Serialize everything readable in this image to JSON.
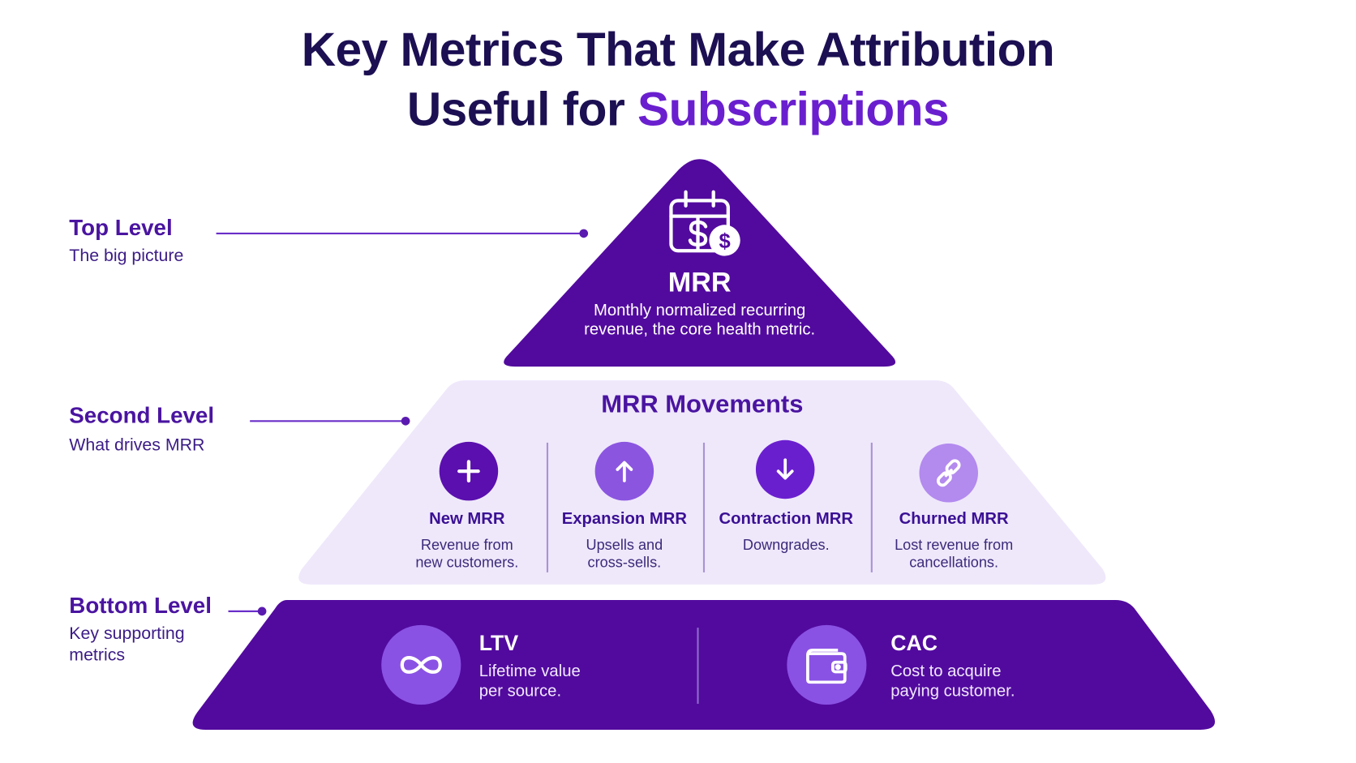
{
  "title": {
    "line1": "Key Metrics That Make Attribution",
    "line2_plain": "Useful for",
    "line2_accent": "Subscriptions"
  },
  "levels": [
    {
      "heading": "Top Level",
      "sub": "The big picture"
    },
    {
      "heading": "Second Level",
      "sub": "What drives MRR"
    },
    {
      "heading": "Bottom Level",
      "sub": "Key supporting metrics"
    }
  ],
  "top": {
    "icon": "calendar-dollar-icon",
    "title": "MRR",
    "description": "Monthly normalized recurring revenue, the core health metric."
  },
  "middle": {
    "title": "MRR Movements",
    "items": [
      {
        "icon": "plus-icon",
        "label": "New MRR",
        "description": "Revenue from new customers."
      },
      {
        "icon": "arrow-up-icon",
        "label": "Expansion MRR",
        "description": "Upsells and cross-sells."
      },
      {
        "icon": "arrow-down-icon",
        "label": "Contraction MRR",
        "description": "Downgrades."
      },
      {
        "icon": "broken-link-icon",
        "label": "Churned MRR",
        "description": "Lost revenue from cancellations."
      }
    ]
  },
  "bottom": {
    "items": [
      {
        "icon": "infinity-icon",
        "title": "LTV",
        "description": "Lifetime value per source."
      },
      {
        "icon": "wallet-icon",
        "title": "CAC",
        "description": "Cost to acquire paying customer."
      }
    ]
  },
  "colors": {
    "dark_purple": "#520a9e",
    "light_lavender": "#efe8fb",
    "accent": "#6a1fcf",
    "title_navy": "#1c0f52",
    "icon_plus": "#5a0fae",
    "icon_up": "#8b55e0",
    "icon_down": "#6a1fcf",
    "icon_link": "#b38aee"
  }
}
